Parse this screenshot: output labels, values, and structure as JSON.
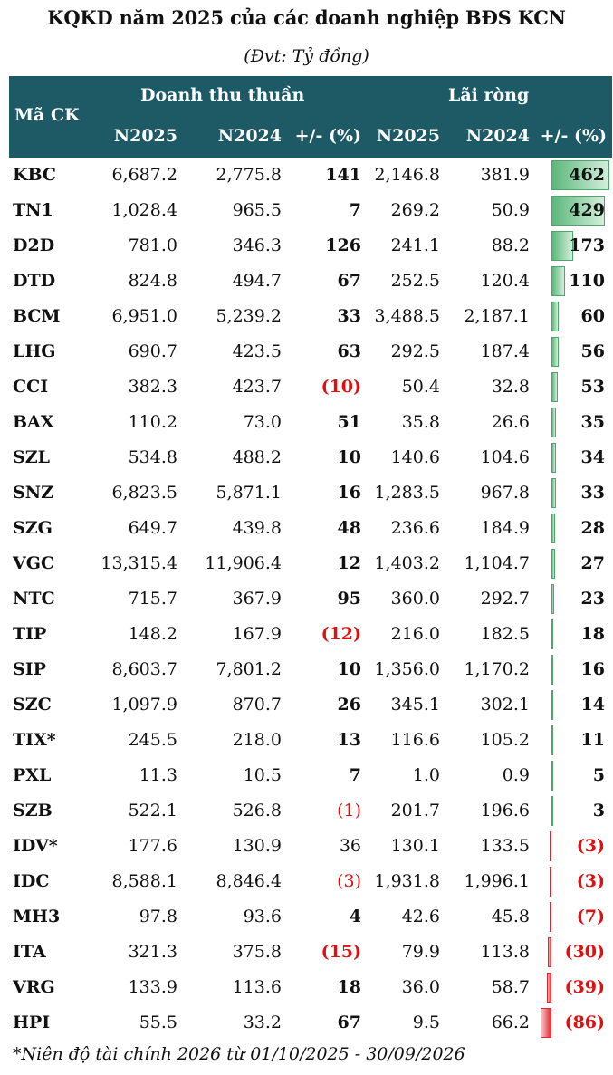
{
  "title": "KQKD năm 2025 của các doanh nghiệp BĐS KCN",
  "subtitle": "(Đvt: Tỷ đồng)",
  "header": {
    "code": "Mã CK",
    "group_revenue": "Doanh thu thuần",
    "group_profit": "Lãi ròng",
    "rev_2025": "N2025",
    "rev_2024": "N2024",
    "rev_change": "+/- (%)",
    "profit_2025": "N2025",
    "profit_2024": "N2024",
    "profit_change": "+/- (%)"
  },
  "rows": [
    {
      "code": "KBC",
      "rev2025": "6,687.2",
      "rev2024": "2,775.8",
      "revChg": "141",
      "revChgBold": true,
      "revNeg": false,
      "p2025": "2,146.8",
      "p2024": "381.9",
      "pChg": "462",
      "pVal": 462
    },
    {
      "code": "TN1",
      "rev2025": "1,028.4",
      "rev2024": "965.5",
      "revChg": "7",
      "revChgBold": true,
      "revNeg": false,
      "p2025": "269.2",
      "p2024": "50.9",
      "pChg": "429",
      "pVal": 429
    },
    {
      "code": "D2D",
      "rev2025": "781.0",
      "rev2024": "346.3",
      "revChg": "126",
      "revChgBold": true,
      "revNeg": false,
      "p2025": "241.1",
      "p2024": "88.2",
      "pChg": "173",
      "pVal": 173
    },
    {
      "code": "DTD",
      "rev2025": "824.8",
      "rev2024": "494.7",
      "revChg": "67",
      "revChgBold": true,
      "revNeg": false,
      "p2025": "252.5",
      "p2024": "120.4",
      "pChg": "110",
      "pVal": 110
    },
    {
      "code": "BCM",
      "rev2025": "6,951.0",
      "rev2024": "5,239.2",
      "revChg": "33",
      "revChgBold": true,
      "revNeg": false,
      "p2025": "3,488.5",
      "p2024": "2,187.1",
      "pChg": "60",
      "pVal": 60
    },
    {
      "code": "LHG",
      "rev2025": "690.7",
      "rev2024": "423.5",
      "revChg": "63",
      "revChgBold": true,
      "revNeg": false,
      "p2025": "292.5",
      "p2024": "187.4",
      "pChg": "56",
      "pVal": 56
    },
    {
      "code": "CCI",
      "rev2025": "382.3",
      "rev2024": "423.7",
      "revChg": "(10)",
      "revChgBold": true,
      "revNeg": true,
      "p2025": "50.4",
      "p2024": "32.8",
      "pChg": "53",
      "pVal": 53
    },
    {
      "code": "BAX",
      "rev2025": "110.2",
      "rev2024": "73.0",
      "revChg": "51",
      "revChgBold": true,
      "revNeg": false,
      "p2025": "35.8",
      "p2024": "26.6",
      "pChg": "35",
      "pVal": 35
    },
    {
      "code": "SZL",
      "rev2025": "534.8",
      "rev2024": "488.2",
      "revChg": "10",
      "revChgBold": true,
      "revNeg": false,
      "p2025": "140.6",
      "p2024": "104.6",
      "pChg": "34",
      "pVal": 34
    },
    {
      "code": "SNZ",
      "rev2025": "6,823.5",
      "rev2024": "5,871.1",
      "revChg": "16",
      "revChgBold": true,
      "revNeg": false,
      "p2025": "1,283.5",
      "p2024": "967.8",
      "pChg": "33",
      "pVal": 33
    },
    {
      "code": "SZG",
      "rev2025": "649.7",
      "rev2024": "439.8",
      "revChg": "48",
      "revChgBold": true,
      "revNeg": false,
      "p2025": "236.6",
      "p2024": "184.9",
      "pChg": "28",
      "pVal": 28
    },
    {
      "code": "VGC",
      "rev2025": "13,315.4",
      "rev2024": "11,906.4",
      "revChg": "12",
      "revChgBold": true,
      "revNeg": false,
      "p2025": "1,403.2",
      "p2024": "1,104.7",
      "pChg": "27",
      "pVal": 27
    },
    {
      "code": "NTC",
      "rev2025": "715.7",
      "rev2024": "367.9",
      "revChg": "95",
      "revChgBold": true,
      "revNeg": false,
      "p2025": "360.0",
      "p2024": "292.7",
      "pChg": "23",
      "pVal": 23
    },
    {
      "code": "TIP",
      "rev2025": "148.2",
      "rev2024": "167.9",
      "revChg": "(12)",
      "revChgBold": true,
      "revNeg": true,
      "p2025": "216.0",
      "p2024": "182.5",
      "pChg": "18",
      "pVal": 18
    },
    {
      "code": "SIP",
      "rev2025": "8,603.7",
      "rev2024": "7,801.2",
      "revChg": "10",
      "revChgBold": true,
      "revNeg": false,
      "p2025": "1,356.0",
      "p2024": "1,170.2",
      "pChg": "16",
      "pVal": 16
    },
    {
      "code": "SZC",
      "rev2025": "1,097.9",
      "rev2024": "870.7",
      "revChg": "26",
      "revChgBold": true,
      "revNeg": false,
      "p2025": "345.1",
      "p2024": "302.1",
      "pChg": "14",
      "pVal": 14
    },
    {
      "code": "TIX*",
      "rev2025": "245.5",
      "rev2024": "218.0",
      "revChg": "13",
      "revChgBold": true,
      "revNeg": false,
      "p2025": "116.6",
      "p2024": "105.2",
      "pChg": "11",
      "pVal": 11
    },
    {
      "code": "PXL",
      "rev2025": "11.3",
      "rev2024": "10.5",
      "revChg": "7",
      "revChgBold": true,
      "revNeg": false,
      "p2025": "1.0",
      "p2024": "0.9",
      "pChg": "5",
      "pVal": 5
    },
    {
      "code": "SZB",
      "rev2025": "522.1",
      "rev2024": "526.8",
      "revChg": "(1)",
      "revChgBold": false,
      "revNeg": true,
      "p2025": "201.7",
      "p2024": "196.6",
      "pChg": "3",
      "pVal": 3
    },
    {
      "code": "IDV*",
      "rev2025": "177.6",
      "rev2024": "130.9",
      "revChg": "36",
      "revChgBold": false,
      "revNeg": false,
      "p2025": "130.1",
      "p2024": "133.5",
      "pChg": "(3)",
      "pVal": -3
    },
    {
      "code": "IDC",
      "rev2025": "8,588.1",
      "rev2024": "8,846.4",
      "revChg": "(3)",
      "revChgBold": false,
      "revNeg": true,
      "p2025": "1,931.8",
      "p2024": "1,996.1",
      "pChg": "(3)",
      "pVal": -3
    },
    {
      "code": "MH3",
      "rev2025": "97.8",
      "rev2024": "93.6",
      "revChg": "4",
      "revChgBold": true,
      "revNeg": false,
      "p2025": "42.6",
      "p2024": "45.8",
      "pChg": "(7)",
      "pVal": -7
    },
    {
      "code": "ITA",
      "rev2025": "321.3",
      "rev2024": "375.8",
      "revChg": "(15)",
      "revChgBold": true,
      "revNeg": true,
      "p2025": "79.9",
      "p2024": "113.8",
      "pChg": "(30)",
      "pVal": -30
    },
    {
      "code": "VRG",
      "rev2025": "133.9",
      "rev2024": "113.6",
      "revChg": "18",
      "revChgBold": true,
      "revNeg": false,
      "p2025": "36.0",
      "p2024": "58.7",
      "pChg": "(39)",
      "pVal": -39
    },
    {
      "code": "HPI",
      "rev2025": "55.5",
      "rev2024": "33.2",
      "revChg": "67",
      "revChgBold": true,
      "revNeg": false,
      "p2025": "9.5",
      "p2024": "66.2",
      "pChg": "(86)",
      "pVal": -86
    }
  ],
  "colors": {
    "header_bg": "#1e5a66",
    "positive_bar": "#5cb87a",
    "negative_bar": "#e3323a",
    "negative_text": "#e01010"
  },
  "footnote": "*Niên độ tài chính 2026 từ 01/10/2025 - 30/09/2026"
}
